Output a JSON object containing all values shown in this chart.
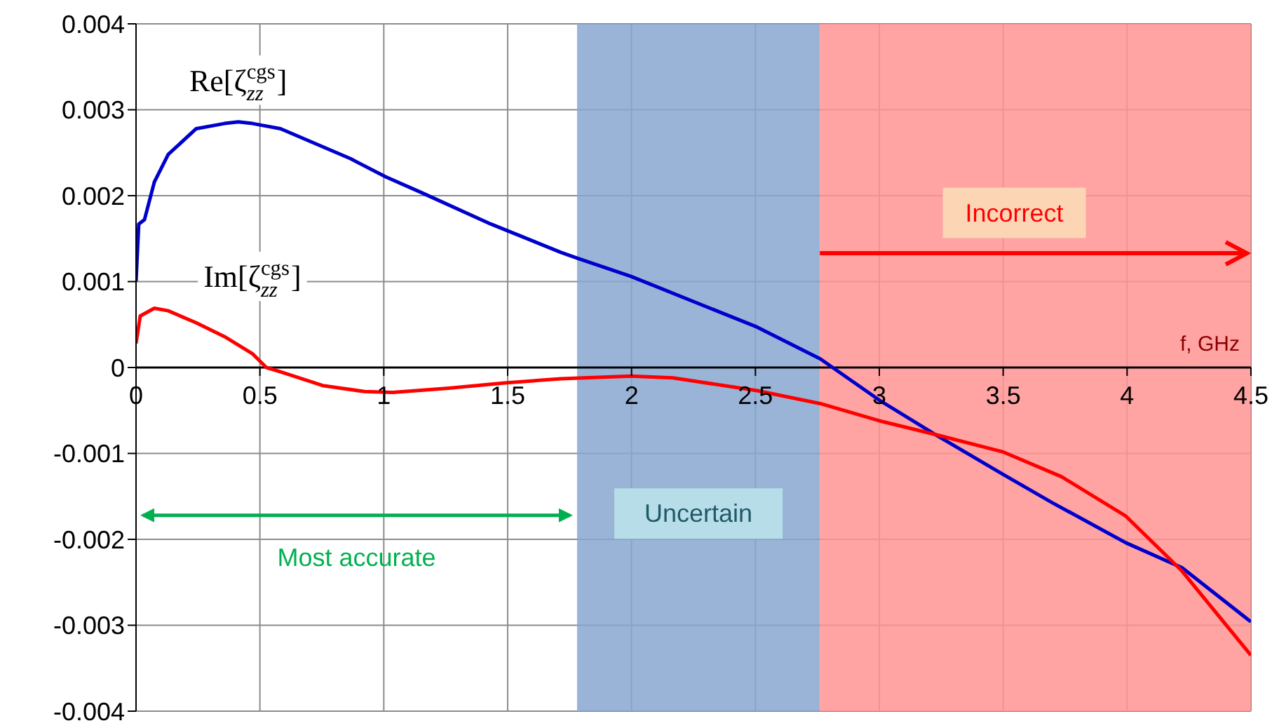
{
  "chart_data": {
    "type": "line",
    "xlabel": "f, GHz",
    "series": [
      {
        "name": "Re[ζ$^{cgs}$$_{zz}$]",
        "color": "#0000cc",
        "x": [
          0,
          0.011,
          0.034,
          0.074,
          0.13,
          0.243,
          0.357,
          0.413,
          0.47,
          0.583,
          0.866,
          1.007,
          1.149,
          1.432,
          1.715,
          1.783,
          1.998,
          2.507,
          2.762,
          3.0,
          3.226,
          3.497,
          3.696,
          3.995,
          4.222,
          4.5
        ],
        "values": [
          0.001,
          0.00167,
          0.00172,
          0.00216,
          0.00248,
          0.00278,
          0.00284,
          0.00286,
          0.00284,
          0.00278,
          0.00243,
          0.00222,
          0.00204,
          0.00167,
          0.00134,
          0.00127,
          0.00106,
          0.00047,
          0.0001,
          -0.00038,
          -0.00078,
          -0.00124,
          -0.00157,
          -0.00204,
          -0.00233,
          -0.00296
        ]
      },
      {
        "name": "Im[ζ$^{cgs}$$_{zz}$]",
        "color": "#ff0000",
        "x": [
          0,
          0.017,
          0.074,
          0.13,
          0.243,
          0.357,
          0.47,
          0.526,
          0.583,
          0.753,
          0.922,
          1.036,
          1.262,
          1.488,
          1.715,
          1.998,
          2.167,
          2.507,
          2.762,
          3.0,
          3.226,
          3.497,
          3.735,
          3.995,
          4.222,
          4.5
        ],
        "values": [
          0.00028,
          0.0006,
          0.00069,
          0.00066,
          0.00052,
          0.00036,
          0.00016,
          0,
          -5e-05,
          -0.00021,
          -0.00028,
          -0.00029,
          -0.00024,
          -0.00018,
          -0.00013,
          -0.0001,
          -0.00012,
          -0.00027,
          -0.00042,
          -0.00062,
          -0.00078,
          -0.00098,
          -0.00127,
          -0.00173,
          -0.00237,
          -0.00335
        ]
      }
    ],
    "xlim": [
      0,
      4.5
    ],
    "xticks": [
      0,
      0.5,
      1,
      1.5,
      2,
      2.5,
      3,
      3.5,
      4,
      4.5
    ],
    "ylim": [
      -0.004,
      0.004
    ],
    "yticks": [
      -0.004,
      -0.003,
      -0.002,
      -0.001,
      0,
      0.001,
      0.002,
      0.003,
      0.004
    ],
    "bands": [
      {
        "axis": "x",
        "from": 1.78,
        "to": 2.76,
        "label": "Uncertain",
        "color": "#87a7d0"
      },
      {
        "axis": "x",
        "from": 2.76,
        "to": 4.5,
        "label": "Incorrect",
        "color": "#ff9393"
      }
    ],
    "annotations": [
      "Most accurate"
    ],
    "grid": true,
    "legend": false,
    "marker": "none",
    "line_style": "solid"
  }
}
